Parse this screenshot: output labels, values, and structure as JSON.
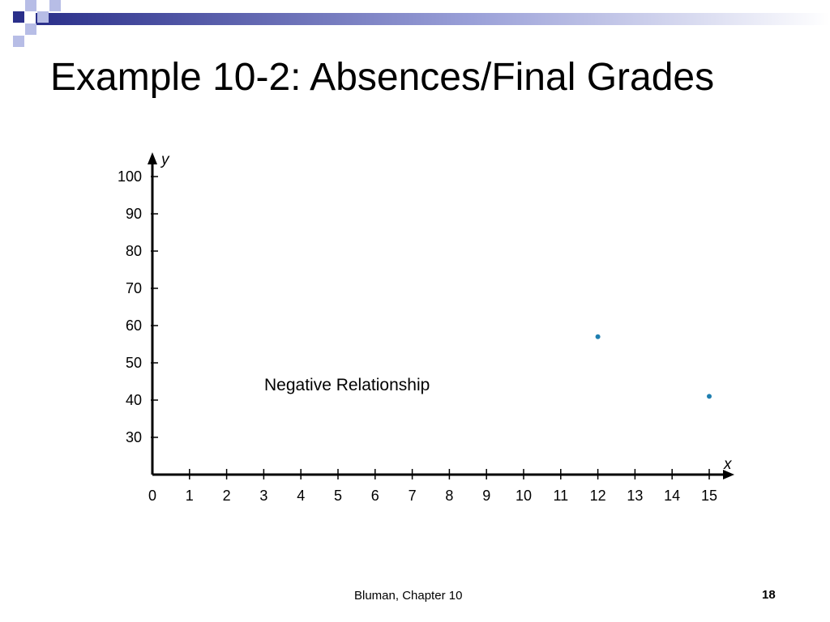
{
  "slide": {
    "title": "Example 10-2: Absences/Final Grades",
    "footer_source": "Bluman, Chapter 10",
    "page_number": "18"
  },
  "theme": {
    "decor_dark": "#2a2f8a",
    "decor_light": "#b7bde6",
    "marker_color": "#1f7fb0"
  },
  "chart_data": {
    "type": "scatter",
    "title": "",
    "xlabel": "x",
    "ylabel": "y",
    "xlim": [
      0,
      15
    ],
    "ylim": [
      20,
      100
    ],
    "x_ticks": [
      0,
      1,
      2,
      3,
      4,
      5,
      6,
      7,
      8,
      9,
      10,
      11,
      12,
      13,
      14,
      15
    ],
    "x_tick_labels": [
      "0",
      "1",
      "2",
      "3",
      "4",
      "5",
      "6",
      "7",
      "8",
      "9",
      "10",
      "11",
      "12",
      "13",
      "14",
      "15"
    ],
    "y_ticks": [
      30,
      40,
      50,
      60,
      70,
      80,
      90,
      100
    ],
    "y_tick_labels": [
      "30",
      "40",
      "50",
      "60",
      "70",
      "80",
      "90",
      "100"
    ],
    "grid": false,
    "annotation": "Negative Relationship",
    "points": [
      {
        "x": 12,
        "y": 57
      },
      {
        "x": 15,
        "y": 41
      }
    ]
  }
}
